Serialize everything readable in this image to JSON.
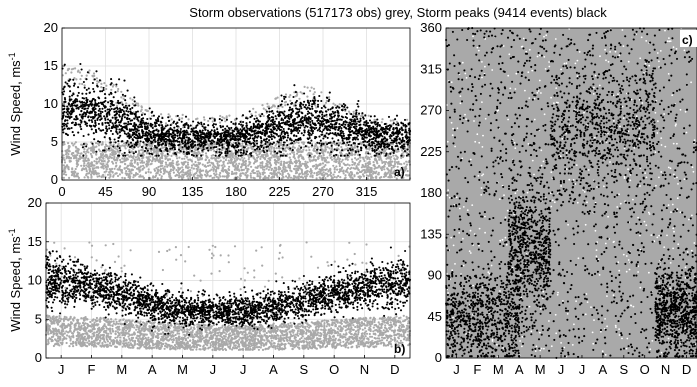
{
  "figure": {
    "title": "Storm observations (517173 obs) grey, Storm peaks (9414 events) black",
    "colors": {
      "observations": "#a9a9a9",
      "peaks": "#000000",
      "grid": "#dcdcdc"
    }
  },
  "chart_data": [
    {
      "type": "scatter",
      "panel_label": "a)",
      "title": "",
      "xlabel": "",
      "ylabel": "Wind Speed, ms",
      "ylabel_superscript": "-1",
      "xlim": [
        0,
        360
      ],
      "ylim": [
        0,
        20
      ],
      "xticks": [
        0,
        45,
        90,
        135,
        180,
        225,
        270,
        315
      ],
      "xtick_labels": [
        "0",
        "45",
        "90",
        "135",
        "180",
        "225",
        "270",
        "315"
      ],
      "yticks": [
        0,
        5,
        10,
        15,
        20
      ],
      "ytick_labels": [
        "0",
        "5",
        "10",
        "15",
        "20"
      ],
      "grid": true,
      "series": [
        {
          "name": "Storm observations",
          "color": "#a9a9a9",
          "description_points": [
            [
              0,
              3
            ],
            [
              45,
              3
            ],
            [
              90,
              3
            ],
            [
              135,
              3
            ],
            [
              180,
              3
            ],
            [
              225,
              3
            ],
            [
              270,
              3
            ],
            [
              315,
              3
            ],
            [
              360,
              3
            ]
          ],
          "envelope_upper": [
            [
              0,
              15
            ],
            [
              30,
              14.5
            ],
            [
              60,
              12
            ],
            [
              90,
              9
            ],
            [
              135,
              8.5
            ],
            [
              180,
              8.5
            ],
            [
              225,
              11
            ],
            [
              255,
              12.5
            ],
            [
              290,
              10
            ],
            [
              330,
              8
            ],
            [
              360,
              8
            ]
          ]
        },
        {
          "name": "Storm peaks",
          "color": "#000000",
          "center": [
            [
              0,
              9
            ],
            [
              30,
              9.5
            ],
            [
              60,
              8
            ],
            [
              90,
              6
            ],
            [
              135,
              5.5
            ],
            [
              180,
              5.5
            ],
            [
              225,
              7
            ],
            [
              255,
              8
            ],
            [
              290,
              7
            ],
            [
              330,
              5.5
            ],
            [
              360,
              6
            ]
          ],
          "spread": [
            [
              0,
              3.5
            ],
            [
              30,
              3.5
            ],
            [
              60,
              3
            ],
            [
              90,
              2
            ],
            [
              135,
              1.7
            ],
            [
              180,
              1.7
            ],
            [
              225,
              2.5
            ],
            [
              255,
              3
            ],
            [
              290,
              2.5
            ],
            [
              330,
              1.8
            ],
            [
              360,
              2
            ]
          ]
        }
      ]
    },
    {
      "type": "scatter",
      "panel_label": "b)",
      "title": "",
      "xlabel": "",
      "ylabel": "Wind Speed, ms",
      "ylabel_superscript": "-1",
      "xlim": [
        0,
        12
      ],
      "ylim": [
        0,
        20
      ],
      "xticks": [
        0.5,
        1.5,
        2.5,
        3.5,
        4.5,
        5.5,
        6.5,
        7.5,
        8.5,
        9.5,
        10.5,
        11.5
      ],
      "xtick_labels": [
        "J",
        "F",
        "M",
        "A",
        "M",
        "J",
        "J",
        "A",
        "S",
        "O",
        "N",
        "D"
      ],
      "yticks": [
        0,
        5,
        10,
        15,
        20
      ],
      "ytick_labels": [
        "0",
        "5",
        "10",
        "15",
        "20"
      ],
      "grid": true,
      "series": [
        {
          "name": "Storm observations",
          "color": "#a9a9a9",
          "center": [
            [
              0,
              3.5
            ],
            [
              2,
              3.3
            ],
            [
              4,
              2.8
            ],
            [
              6,
              2.6
            ],
            [
              8,
              2.8
            ],
            [
              10,
              3.2
            ],
            [
              12,
              3.5
            ]
          ],
          "spread": [
            [
              0,
              2
            ],
            [
              6,
              1.6
            ],
            [
              12,
              2
            ]
          ]
        },
        {
          "name": "Storm peaks",
          "color": "#000000",
          "center": [
            [
              0,
              10
            ],
            [
              1,
              9.8
            ],
            [
              2,
              8.8
            ],
            [
              3,
              7.5
            ],
            [
              4,
              6.5
            ],
            [
              5,
              6
            ],
            [
              6,
              6
            ],
            [
              7,
              6.2
            ],
            [
              8,
              7
            ],
            [
              9,
              8
            ],
            [
              10,
              8.8
            ],
            [
              11,
              9.5
            ],
            [
              12,
              10
            ]
          ],
          "spread": [
            [
              0,
              2.5
            ],
            [
              3,
              2
            ],
            [
              6,
              1.5
            ],
            [
              9,
              2
            ],
            [
              12,
              2.5
            ]
          ]
        }
      ]
    },
    {
      "type": "scatter",
      "panel_label": "c)",
      "title": "",
      "xlabel": "",
      "ylabel": "",
      "xlim": [
        0,
        12
      ],
      "ylim": [
        0,
        360
      ],
      "xticks": [
        0.5,
        1.5,
        2.5,
        3.5,
        4.5,
        5.5,
        6.5,
        7.5,
        8.5,
        9.5,
        10.5,
        11.5
      ],
      "xtick_labels": [
        "J",
        "F",
        "M",
        "A",
        "M",
        "J",
        "J",
        "A",
        "S",
        "O",
        "N",
        "D"
      ],
      "yticks": [
        0,
        45,
        90,
        135,
        180,
        225,
        270,
        315,
        360
      ],
      "ytick_labels": [
        "0",
        "45",
        "90",
        "135",
        "180",
        "225",
        "270",
        "315",
        "360"
      ],
      "grid": false,
      "series": [
        {
          "name": "Storm observations",
          "color": "#a9a9a9",
          "fill": "dense"
        },
        {
          "name": "Storm peaks",
          "color": "#000000",
          "clusters": [
            {
              "x": [
                0,
                3.5
              ],
              "y_center": 45,
              "y_spread": 25
            },
            {
              "x": [
                10,
                12
              ],
              "y_center": 50,
              "y_spread": 25
            },
            {
              "x": [
                5,
                10
              ],
              "y_center": 250,
              "y_spread": 35
            },
            {
              "x": [
                3,
                5
              ],
              "y_center": 120,
              "y_spread": 40
            }
          ]
        }
      ]
    }
  ]
}
